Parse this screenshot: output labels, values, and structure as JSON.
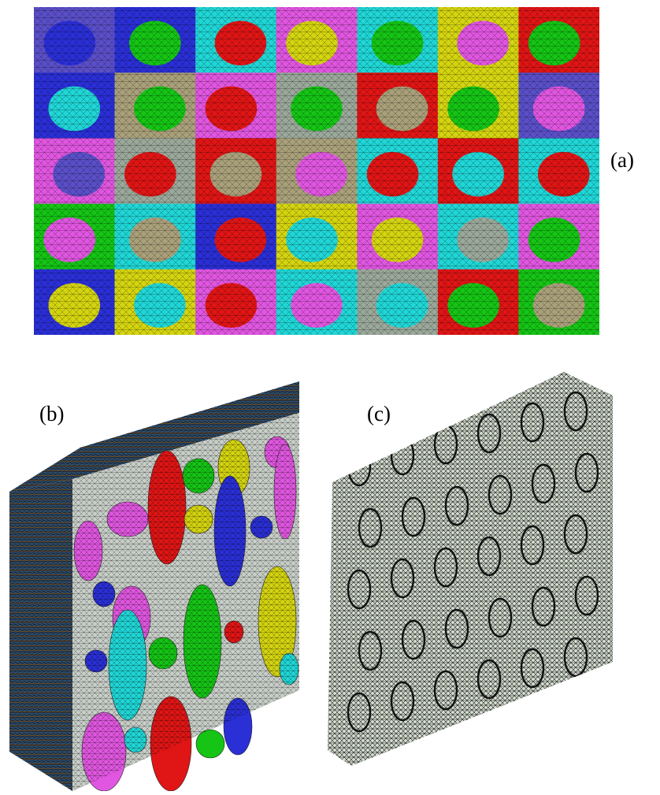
{
  "figure": {
    "panels": [
      {
        "label": "(a)"
      },
      {
        "label": "(b)"
      },
      {
        "label": "(c)"
      }
    ],
    "colors": {
      "palette": [
        "#2a2fd6",
        "#e01515",
        "#15c415",
        "#d4d410",
        "#e056e0",
        "#20d6d6",
        "#a9a07a",
        "#9aa89a",
        "#5a4fc8"
      ]
    }
  }
}
